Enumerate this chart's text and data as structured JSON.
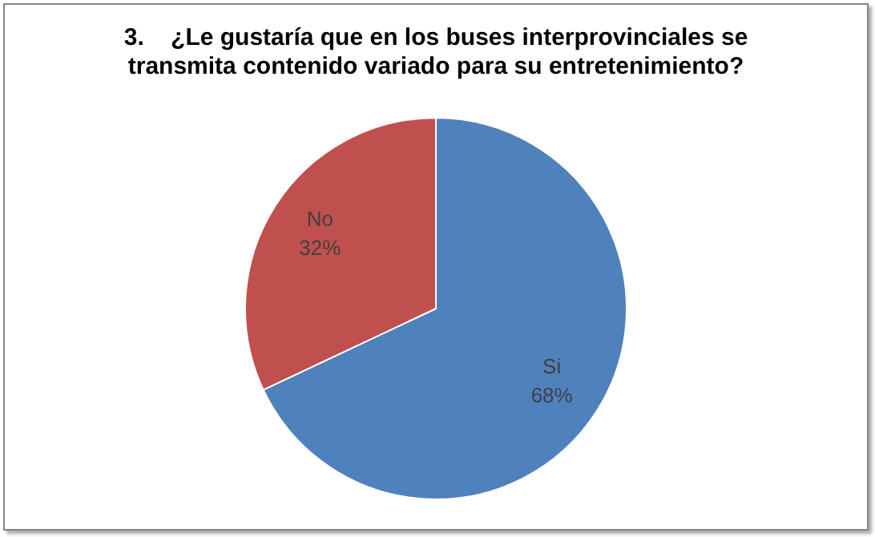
{
  "chart_data": {
    "type": "pie",
    "title": "3.    ¿Le gustaría que en los buses interprovinciales se transmita contenido variado para su entretenimiento?",
    "categories": [
      "Si",
      "No"
    ],
    "values": [
      68,
      32
    ],
    "value_labels": [
      "68%",
      "32%"
    ],
    "colors": [
      "#4f81bd",
      "#c0504d"
    ],
    "legend": false
  }
}
